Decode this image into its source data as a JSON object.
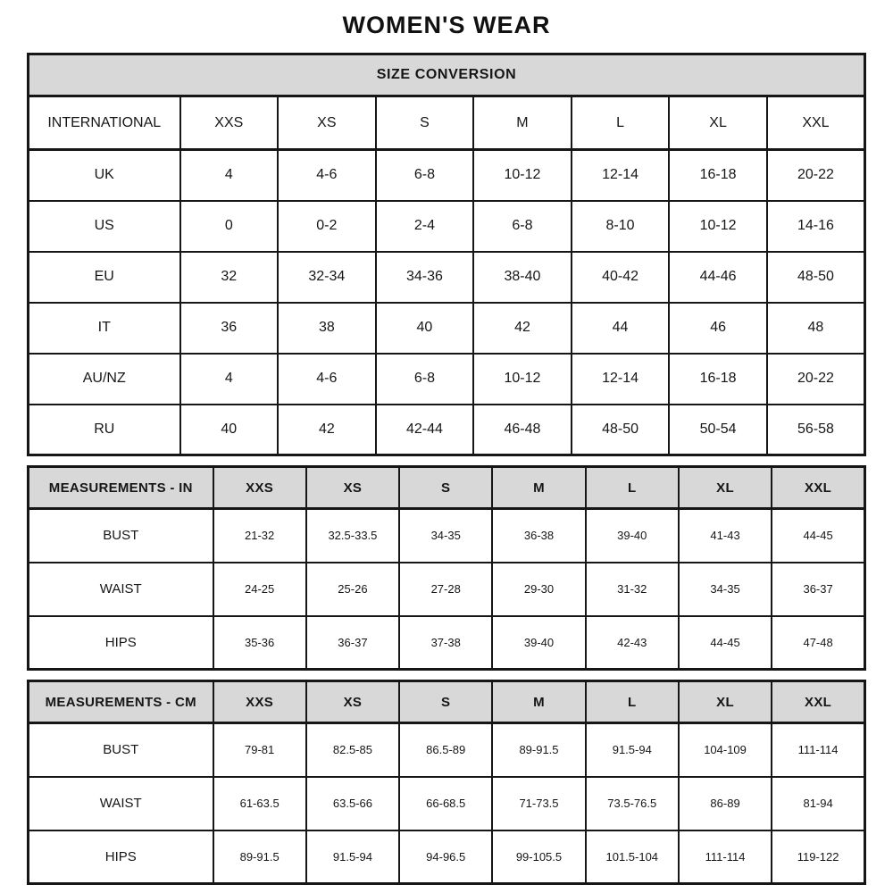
{
  "page": {
    "title": "WOMEN'S WEAR"
  },
  "colors": {
    "header_bg": "#d8d8d8",
    "border": "#161616",
    "text": "#161616",
    "page_bg": "#ffffff"
  },
  "chart_data": [
    {
      "type": "table",
      "title": "SIZE CONVERSION",
      "columns": [
        "INTERNATIONAL",
        "XXS",
        "XS",
        "S",
        "M",
        "L",
        "XL",
        "XXL"
      ],
      "rows": [
        [
          "UK",
          "4",
          "4-6",
          "6-8",
          "10-12",
          "12-14",
          "16-18",
          "20-22"
        ],
        [
          "US",
          "0",
          "0-2",
          "2-4",
          "6-8",
          "8-10",
          "10-12",
          "14-16"
        ],
        [
          "EU",
          "32",
          "32-34",
          "34-36",
          "38-40",
          "40-42",
          "44-46",
          "48-50"
        ],
        [
          "IT",
          "36",
          "38",
          "40",
          "42",
          "44",
          "46",
          "48"
        ],
        [
          "AU/NZ",
          "4",
          "4-6",
          "6-8",
          "10-12",
          "12-14",
          "16-18",
          "20-22"
        ],
        [
          "RU",
          "40",
          "42",
          "42-44",
          "46-48",
          "48-50",
          "50-54",
          "56-58"
        ]
      ]
    },
    {
      "type": "table",
      "title": "MEASUREMENTS - IN",
      "columns": [
        "MEASUREMENTS - IN",
        "XXS",
        "XS",
        "S",
        "M",
        "L",
        "XL",
        "XXL"
      ],
      "rows": [
        [
          "BUST",
          "21-32",
          "32.5-33.5",
          "34-35",
          "36-38",
          "39-40",
          "41-43",
          "44-45"
        ],
        [
          "WAIST",
          "24-25",
          "25-26",
          "27-28",
          "29-30",
          "31-32",
          "34-35",
          "36-37"
        ],
        [
          "HIPS",
          "35-36",
          "36-37",
          "37-38",
          "39-40",
          "42-43",
          "44-45",
          "47-48"
        ]
      ]
    },
    {
      "type": "table",
      "title": "MEASUREMENTS - CM",
      "columns": [
        "MEASUREMENTS - CM",
        "XXS",
        "XS",
        "S",
        "M",
        "L",
        "XL",
        "XXL"
      ],
      "rows": [
        [
          "BUST",
          "79-81",
          "82.5-85",
          "86.5-89",
          "89-91.5",
          "91.5-94",
          "104-109",
          "111-114"
        ],
        [
          "WAIST",
          "61-63.5",
          "63.5-66",
          "66-68.5",
          "71-73.5",
          "73.5-76.5",
          "86-89",
          "81-94"
        ],
        [
          "HIPS",
          "89-91.5",
          "91.5-94",
          "94-96.5",
          "99-105.5",
          "101.5-104",
          "111-114",
          "119-122"
        ]
      ]
    }
  ]
}
